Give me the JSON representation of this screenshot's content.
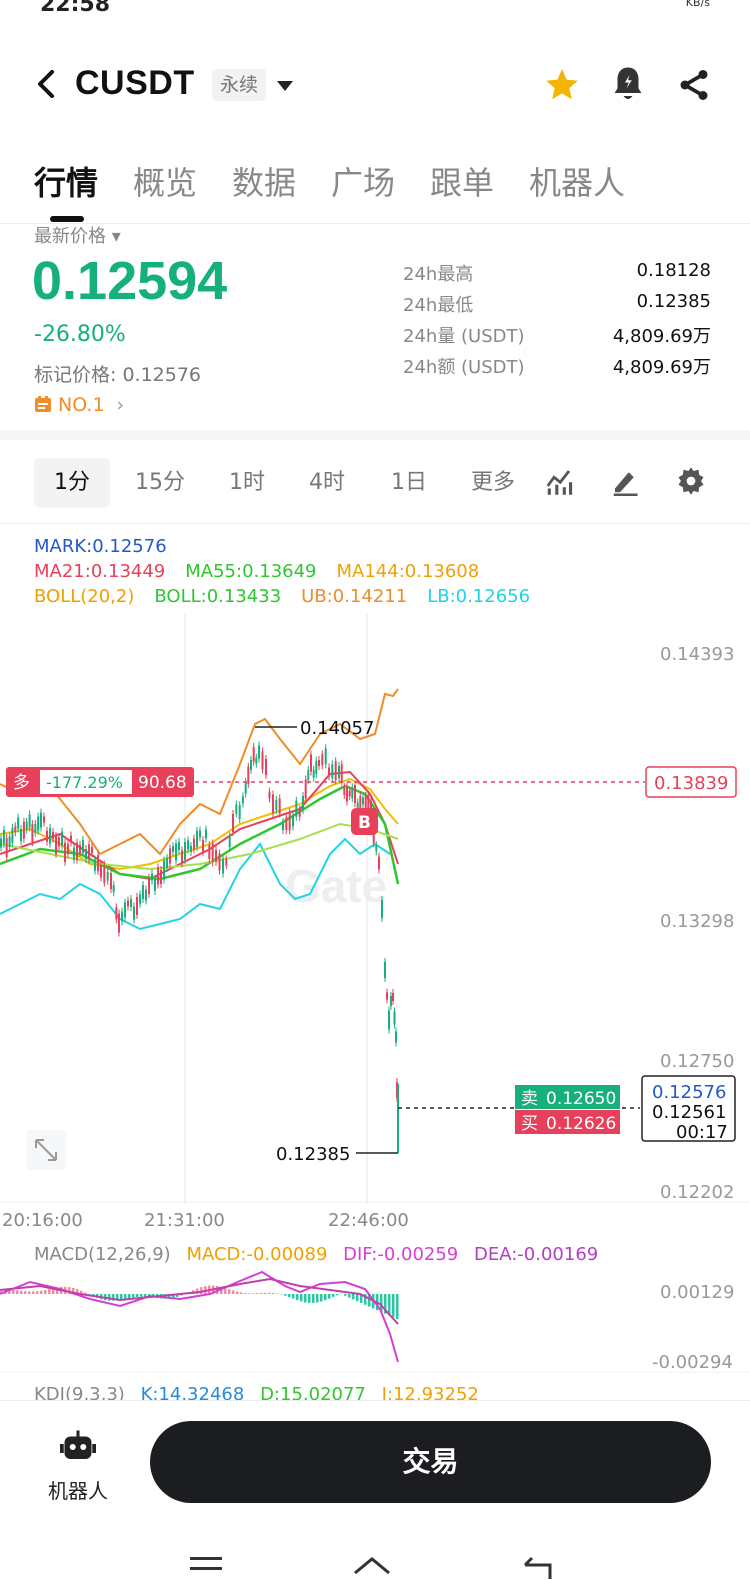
{
  "status_bar": {
    "time": "22:58",
    "network_unit": "KB/s"
  },
  "header": {
    "pair": "CUSDT",
    "contract_type": "永续"
  },
  "tabs": [
    {
      "label": "行情",
      "active": true
    },
    {
      "label": "概览"
    },
    {
      "label": "数据"
    },
    {
      "label": "广场"
    },
    {
      "label": "跟单"
    },
    {
      "label": "机器人"
    }
  ],
  "ticker": {
    "latest_label": "最新价格 ▾",
    "last_price": "0.12594",
    "change_pct": "-26.80%",
    "mark_price": "标记价格: 0.12576",
    "rank": "NO.1",
    "stats": [
      {
        "label": "24h最高",
        "value": "0.18128"
      },
      {
        "label": "24h最低",
        "value": "0.12385"
      },
      {
        "label": "24h量 (USDT)",
        "value": "4,809.69万"
      },
      {
        "label": "24h额 (USDT)",
        "value": "4,809.69万"
      }
    ]
  },
  "intervals": [
    {
      "label": "1分",
      "active": true
    },
    {
      "label": "15分"
    },
    {
      "label": "1时"
    },
    {
      "label": "4时"
    },
    {
      "label": "1日"
    },
    {
      "label": "更多"
    }
  ],
  "indicators": {
    "mark": "MARK:0.12576",
    "ma21": "MA21:0.13449",
    "ma55": "MA55:0.13649",
    "ma144": "MA144:0.13608",
    "boll": "BOLL(20,2)",
    "boll_mid": "BOLL:0.13433",
    "boll_ub": "UB:0.14211",
    "boll_lb": "LB:0.12656",
    "macd_title": "MACD(12,26,9)",
    "macd": "MACD:-0.00089",
    "dif": "DIF:-0.00259",
    "dea": "DEA:-0.00169",
    "kdj_title": "KDJ(9,3,3)",
    "kdj_k": "K:14.32468",
    "kdj_d": "D:15.02077",
    "kdj_j": "J:12.93252"
  },
  "chart_data": {
    "type": "candlestick",
    "price_axis_ticks": [
      "0.14393",
      "0.13298",
      "0.12750",
      "0.12202"
    ],
    "time_axis_ticks": [
      "20:16:00",
      "21:31:00",
      "22:46:00"
    ],
    "macd_axis_ticks": [
      "0.00129",
      "-0.00294"
    ],
    "high_marker": "0.14057",
    "low_marker": "0.12385",
    "position": {
      "side": "多",
      "pnl_pct": "-177.29%",
      "value": "90.68",
      "entry_price": "0.13839"
    },
    "buy_marker": "B",
    "sell_label": "卖",
    "sell_price": "0.12650",
    "buy_label": "买",
    "buy_price": "0.12626",
    "current_box": {
      "mark": "0.12576",
      "last": "0.12561",
      "countdown": "00:17"
    },
    "watermark": "Gate"
  },
  "bottom": {
    "robot_label": "机器人",
    "trade_button": "交易"
  },
  "colors": {
    "up": "#16b07a",
    "down": "#e8405a",
    "ma21": "#e8405a",
    "ma55": "#2ec72e",
    "ma144": "#f0a000",
    "boll_band": "#22d3e6",
    "mark": "#2458c9"
  }
}
